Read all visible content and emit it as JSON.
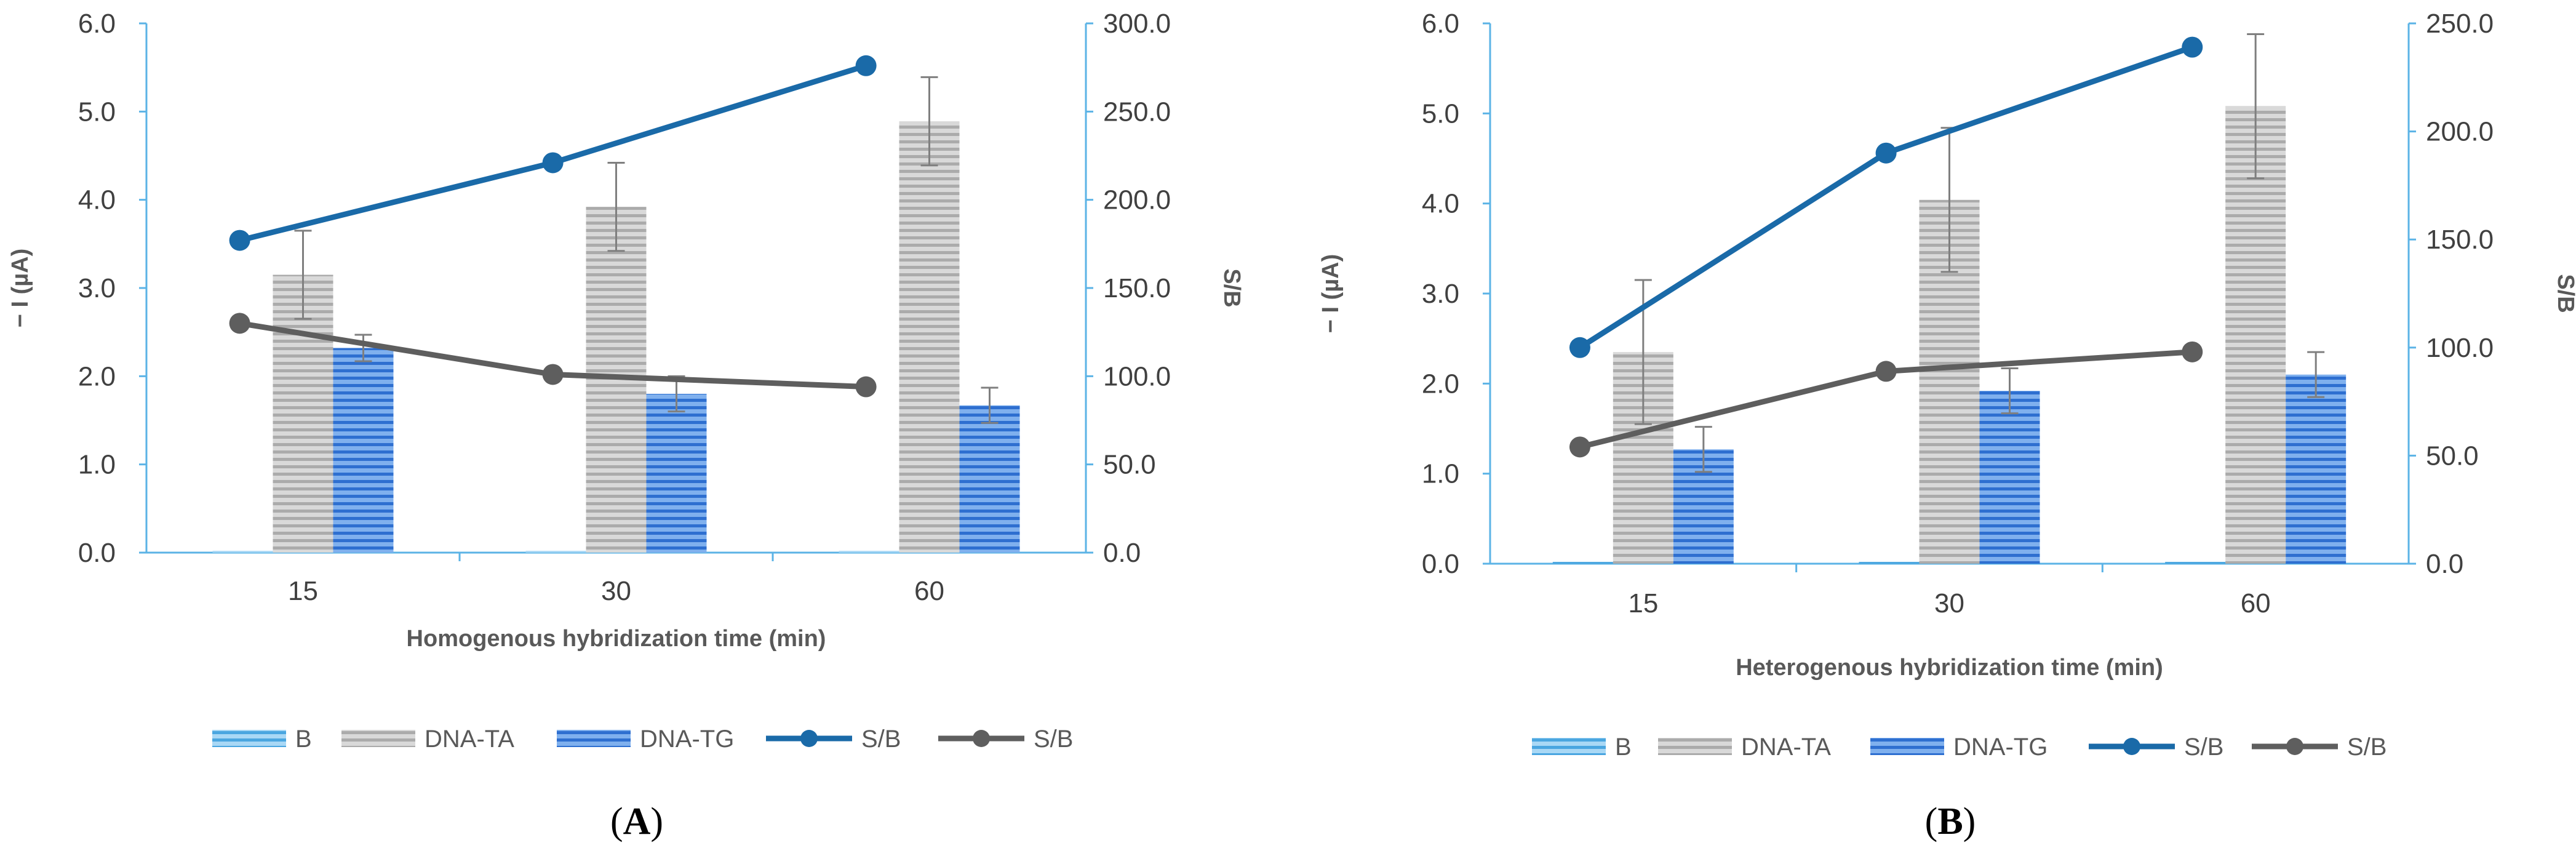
{
  "chart_data": [
    {
      "type": "bar",
      "panel_label": "A",
      "categories": [
        "15",
        "30",
        "60"
      ],
      "xlabel": "Homogenous hybridization time (min)",
      "ylabel": "− I (µA)",
      "y2label": "S/B",
      "ylim": [
        0,
        6
      ],
      "y2lim": [
        0,
        300
      ],
      "yticks": [
        "0.0",
        "1.0",
        "2.0",
        "3.0",
        "4.0",
        "5.0",
        "6.0"
      ],
      "y2ticks": [
        "0.0",
        "50.0",
        "100.0",
        "150.0",
        "200.0",
        "250.0",
        "300.0"
      ],
      "legend_position": "bottom",
      "series": [
        {
          "name": "B",
          "kind": "bar",
          "axis": "left",
          "color": "#5bb3e6",
          "values": [
            0.02,
            0.02,
            0.02
          ],
          "errors": [
            0,
            0,
            0
          ]
        },
        {
          "name": "DNA-TA",
          "kind": "bar",
          "axis": "left",
          "color": "#bfbfbf",
          "values": [
            3.15,
            3.92,
            4.89
          ],
          "errors": [
            0.5,
            0.5,
            0.5
          ]
        },
        {
          "name": "DNA-TG",
          "kind": "bar",
          "axis": "left",
          "color": "#3a7dd8",
          "values": [
            2.32,
            1.8,
            1.67
          ],
          "errors": [
            0.15,
            0.2,
            0.2
          ]
        },
        {
          "name": "S/B",
          "kind": "line",
          "axis": "right",
          "color": "#1a6aa8",
          "values": [
            177,
            221,
            276
          ]
        },
        {
          "name": "S/B",
          "kind": "line",
          "axis": "right",
          "color": "#5e5e5e",
          "values": [
            130,
            101,
            94
          ]
        }
      ]
    },
    {
      "type": "bar",
      "panel_label": "B",
      "categories": [
        "15",
        "30",
        "60"
      ],
      "xlabel": "Heterogenous hybridization time (min)",
      "ylabel": "− I (µA)",
      "y2label": "S/B",
      "ylim": [
        0,
        6
      ],
      "y2lim": [
        0,
        250
      ],
      "yticks": [
        "0.0",
        "1.0",
        "2.0",
        "3.0",
        "4.0",
        "5.0",
        "6.0"
      ],
      "y2ticks": [
        "0.0",
        "50.0",
        "100.0",
        "150.0",
        "200.0",
        "250.0"
      ],
      "legend_position": "bottom",
      "series": [
        {
          "name": "B",
          "kind": "bar",
          "axis": "left",
          "color": "#5bb3e6",
          "values": [
            0.02,
            0.02,
            0.02
          ],
          "errors": [
            0,
            0,
            0
          ]
        },
        {
          "name": "DNA-TA",
          "kind": "bar",
          "axis": "left",
          "color": "#bfbfbf",
          "values": [
            2.35,
            4.04,
            5.08
          ],
          "errors": [
            0.8,
            0.8,
            0.8
          ]
        },
        {
          "name": "DNA-TG",
          "kind": "bar",
          "axis": "left",
          "color": "#3a7dd8",
          "values": [
            1.27,
            1.92,
            2.1
          ],
          "errors": [
            0.25,
            0.25,
            0.25
          ]
        },
        {
          "name": "S/B",
          "kind": "line",
          "axis": "right",
          "color": "#1a6aa8",
          "values": [
            100,
            190,
            239
          ]
        },
        {
          "name": "S/B",
          "kind": "line",
          "axis": "right",
          "color": "#5e5e5e",
          "values": [
            54,
            89,
            98
          ]
        }
      ]
    }
  ]
}
